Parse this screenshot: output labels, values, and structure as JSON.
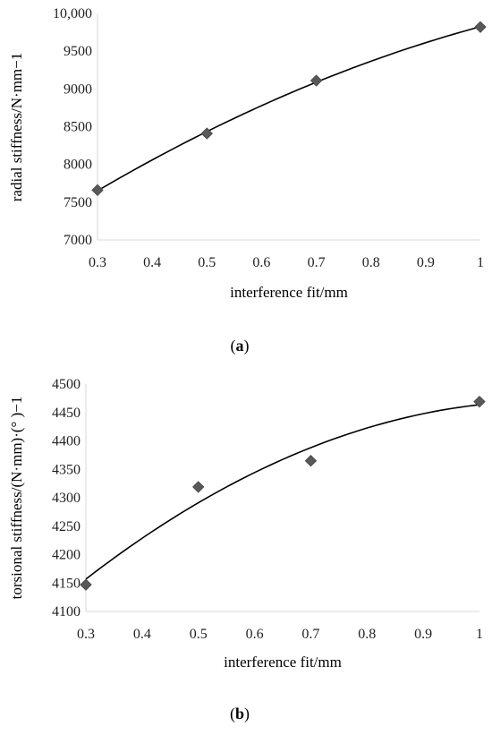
{
  "chart_data": [
    {
      "type": "scatter",
      "xlabel": "interference fit/mm",
      "ylabel": "radial stiffness/N·mm−1",
      "xlim": [
        0.3,
        1
      ],
      "ylim": [
        7000,
        10000
      ],
      "x_ticks": [
        "0.3",
        "0.4",
        "0.5",
        "0.6",
        "0.7",
        "0.8",
        "0.9",
        "1"
      ],
      "y_ticks": [
        "7000",
        "7500",
        "8000",
        "8500",
        "9000",
        "9500",
        "10,000"
      ],
      "points": [
        {
          "x": 0.3,
          "y": 7660
        },
        {
          "x": 0.5,
          "y": 8410
        },
        {
          "x": 0.7,
          "y": 9110
        },
        {
          "x": 1.0,
          "y": 9820
        }
      ],
      "trendline": "polynomial",
      "caption_letter": "a",
      "grid": false
    },
    {
      "type": "scatter",
      "xlabel": "interference fit/mm",
      "ylabel": "torsional stiffness/(N·mm)·(° )−1",
      "xlim": [
        0.3,
        1
      ],
      "ylim": [
        4100,
        4500
      ],
      "x_ticks": [
        "0.3",
        "0.4",
        "0.5",
        "0.6",
        "0.7",
        "0.8",
        "0.9",
        "1"
      ],
      "y_ticks": [
        "4100",
        "4150",
        "4200",
        "4250",
        "4300",
        "4350",
        "4400",
        "4450",
        "4500"
      ],
      "points": [
        {
          "x": 0.3,
          "y": 4147
        },
        {
          "x": 0.5,
          "y": 4319
        },
        {
          "x": 0.7,
          "y": 4365
        },
        {
          "x": 1.0,
          "y": 4469
        }
      ],
      "trendline": "polynomial",
      "caption_letter": "b",
      "grid": false
    }
  ]
}
